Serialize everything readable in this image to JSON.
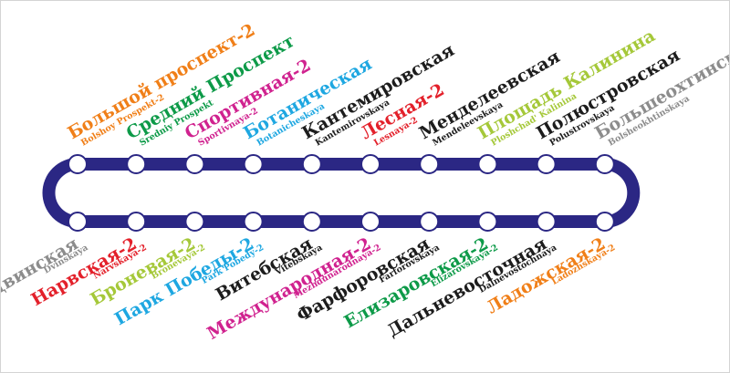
{
  "line_color": "#2b2784",
  "station_fill": "#ffffff",
  "top_stations": [
    {
      "ru": "Большой проспект-2",
      "en": "Bolshoy Prospekt-2",
      "color": "#f07f18"
    },
    {
      "ru": "Средний Проспект",
      "en": "Sredniy Prospekt",
      "color": "#0d9a48"
    },
    {
      "ru": "Спортивная-2",
      "en": "Sportivnaya-2",
      "color": "#d0228f"
    },
    {
      "ru": "Ботаническая",
      "en": "Botanicheskaya",
      "color": "#1ea7e1"
    },
    {
      "ru": "Кантемировская",
      "en": "Kantemirovskaya",
      "color": "#1c1c1c"
    },
    {
      "ru": "Лесная-2",
      "en": "Lesnaya-2",
      "color": "#e3202a"
    },
    {
      "ru": "Менделеевская",
      "en": "Mendeleevskaya",
      "color": "#1c1c1c"
    },
    {
      "ru": "Площадь Калинина",
      "en": "Ploshchad' Kalinina",
      "color": "#a5c839"
    },
    {
      "ru": "Полюстровская",
      "en": "Polustrovskaya",
      "color": "#1c1c1c"
    },
    {
      "ru": "Большеохтинская",
      "en": "Bolsheokhtinskaya",
      "color": "#8c8c8c"
    }
  ],
  "bottom_stations": [
    {
      "ru": "Двинская",
      "en": "Dvinskaya",
      "color": "#8c8c8c"
    },
    {
      "ru": "Нарвская-2",
      "en": "Narvskaya-2",
      "color": "#e3202a"
    },
    {
      "ru": "Броневая-2",
      "en": "Bronevaya-2",
      "color": "#a5c839"
    },
    {
      "ru": "Парк Победы-2",
      "en": "Park Pobedy-2",
      "color": "#1ea7e1"
    },
    {
      "ru": "Витебская",
      "en": "Vitebskaya",
      "color": "#1c1c1c"
    },
    {
      "ru": "Международная-2",
      "en": "Mezhdunarodnaya-2",
      "color": "#d0228f"
    },
    {
      "ru": "Фарфоровская",
      "en": "Farforovskaya",
      "color": "#1c1c1c"
    },
    {
      "ru": "Елизаровская-2",
      "en": "Elizarovskaya-2",
      "color": "#0d9a48"
    },
    {
      "ru": "Дальневосточная",
      "en": "Dalnevostochnaya",
      "color": "#1c1c1c"
    },
    {
      "ru": "Ладожская-2",
      "en": "Ladozhskaya-2",
      "color": "#f07f18"
    }
  ]
}
